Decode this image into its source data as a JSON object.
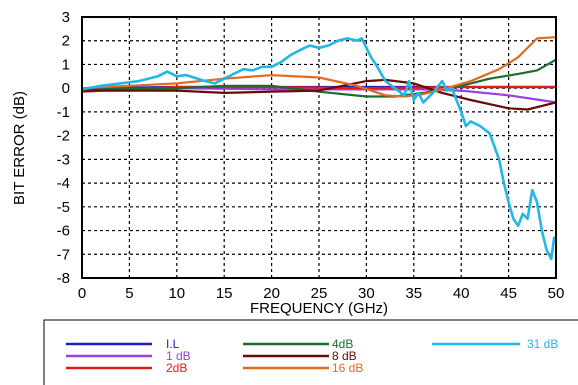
{
  "chart_data": {
    "type": "line",
    "title": "",
    "xlabel": "FREQUENCY (GHz)",
    "ylabel": "BIT ERROR (dB)",
    "xlim": [
      0,
      50
    ],
    "ylim": [
      -8,
      3
    ],
    "xticks": [
      0,
      5,
      10,
      15,
      20,
      25,
      30,
      35,
      40,
      45,
      50
    ],
    "yticks": [
      3,
      2,
      1,
      0,
      -1,
      -2,
      -3,
      -4,
      -5,
      -6,
      -7,
      -8
    ],
    "grid": true,
    "legend_position": "bottom",
    "series": [
      {
        "name": "I.L",
        "color": "#1f1fbf",
        "points": [
          [
            0,
            0
          ],
          [
            10,
            0.05
          ],
          [
            20,
            0.05
          ],
          [
            30,
            0.05
          ],
          [
            40,
            0.05
          ],
          [
            50,
            0.05
          ]
        ]
      },
      {
        "name": "1 dB",
        "color": "#9b3fe0",
        "points": [
          [
            0,
            -0.1
          ],
          [
            10,
            0
          ],
          [
            20,
            -0.05
          ],
          [
            30,
            -0.05
          ],
          [
            36,
            -0.05
          ],
          [
            40,
            -0.1
          ],
          [
            45,
            -0.3
          ],
          [
            50,
            -0.6
          ]
        ]
      },
      {
        "name": "2dB",
        "color": "#e01b1b",
        "points": [
          [
            0,
            -0.15
          ],
          [
            10,
            0.05
          ],
          [
            20,
            0.05
          ],
          [
            30,
            0
          ],
          [
            40,
            0.05
          ],
          [
            45,
            0.05
          ],
          [
            50,
            0.05
          ]
        ]
      },
      {
        "name": "4dB",
        "color": "#1a6e2a",
        "points": [
          [
            0,
            -0.1
          ],
          [
            5,
            0
          ],
          [
            10,
            0
          ],
          [
            15,
            0.1
          ],
          [
            20,
            0.1
          ],
          [
            25,
            -0.15
          ],
          [
            30,
            -0.35
          ],
          [
            33,
            -0.35
          ],
          [
            36,
            -0.2
          ],
          [
            40,
            0.1
          ],
          [
            43,
            0.4
          ],
          [
            46,
            0.6
          ],
          [
            48,
            0.75
          ],
          [
            50,
            1.2
          ]
        ]
      },
      {
        "name": "8 dB",
        "color": "#6b0a0a",
        "points": [
          [
            0,
            -0.1
          ],
          [
            10,
            -0.1
          ],
          [
            15,
            -0.2
          ],
          [
            20,
            -0.15
          ],
          [
            25,
            -0.1
          ],
          [
            30,
            0.3
          ],
          [
            32,
            0.35
          ],
          [
            35,
            0.2
          ],
          [
            38,
            -0.2
          ],
          [
            41,
            -0.5
          ],
          [
            45,
            -0.85
          ],
          [
            47,
            -0.9
          ],
          [
            50,
            -0.6
          ]
        ]
      },
      {
        "name": "16 dB",
        "color": "#e36b1f",
        "points": [
          [
            0,
            0
          ],
          [
            5,
            0.1
          ],
          [
            10,
            0.2
          ],
          [
            15,
            0.4
          ],
          [
            20,
            0.55
          ],
          [
            25,
            0.45
          ],
          [
            29,
            0.1
          ],
          [
            32,
            -0.3
          ],
          [
            34,
            -0.35
          ],
          [
            36,
            -0.25
          ],
          [
            38,
            -0.05
          ],
          [
            41,
            0.3
          ],
          [
            44,
            0.8
          ],
          [
            46,
            1.3
          ],
          [
            48,
            2.1
          ],
          [
            50,
            2.15
          ]
        ]
      },
      {
        "name": "31 dB",
        "color": "#1fb8e8",
        "points": [
          [
            0,
            -0.05
          ],
          [
            2,
            0.1
          ],
          [
            4,
            0.2
          ],
          [
            6,
            0.3
          ],
          [
            8,
            0.5
          ],
          [
            9,
            0.7
          ],
          [
            10,
            0.5
          ],
          [
            11,
            0.55
          ],
          [
            13,
            0.3
          ],
          [
            14,
            0.2
          ],
          [
            15,
            0.4
          ],
          [
            16,
            0.6
          ],
          [
            17,
            0.8
          ],
          [
            18,
            0.75
          ],
          [
            19,
            0.9
          ],
          [
            20,
            0.9
          ],
          [
            21,
            1.1
          ],
          [
            22,
            1.4
          ],
          [
            23,
            1.6
          ],
          [
            24,
            1.8
          ],
          [
            25,
            1.7
          ],
          [
            26,
            1.8
          ],
          [
            27,
            2.0
          ],
          [
            28,
            2.1
          ],
          [
            29,
            2.0
          ],
          [
            29.5,
            2.1
          ],
          [
            30,
            1.7
          ],
          [
            30.5,
            1.3
          ],
          [
            31,
            1.0
          ],
          [
            32,
            0.3
          ],
          [
            33,
            0.0
          ],
          [
            34,
            -0.3
          ],
          [
            34.5,
            0.3
          ],
          [
            35,
            -0.5
          ],
          [
            35.5,
            -0.2
          ],
          [
            36,
            -0.6
          ],
          [
            37,
            -0.2
          ],
          [
            38,
            0.3
          ],
          [
            38.5,
            -0.1
          ],
          [
            39,
            0.0
          ],
          [
            39.5,
            -0.5
          ],
          [
            40,
            -1.0
          ],
          [
            40.5,
            -1.6
          ],
          [
            41,
            -1.4
          ],
          [
            42,
            -1.6
          ],
          [
            43,
            -1.9
          ],
          [
            44,
            -3.0
          ],
          [
            44.5,
            -4.0
          ],
          [
            45,
            -4.8
          ],
          [
            45.5,
            -5.5
          ],
          [
            46,
            -5.8
          ],
          [
            46.5,
            -5.3
          ],
          [
            47,
            -5.5
          ],
          [
            47.5,
            -4.3
          ],
          [
            48,
            -4.8
          ],
          [
            48.5,
            -6.0
          ],
          [
            49,
            -6.8
          ],
          [
            49.5,
            -7.2
          ],
          [
            49.8,
            -6.3
          ],
          [
            50,
            -6.5
          ]
        ]
      }
    ]
  }
}
